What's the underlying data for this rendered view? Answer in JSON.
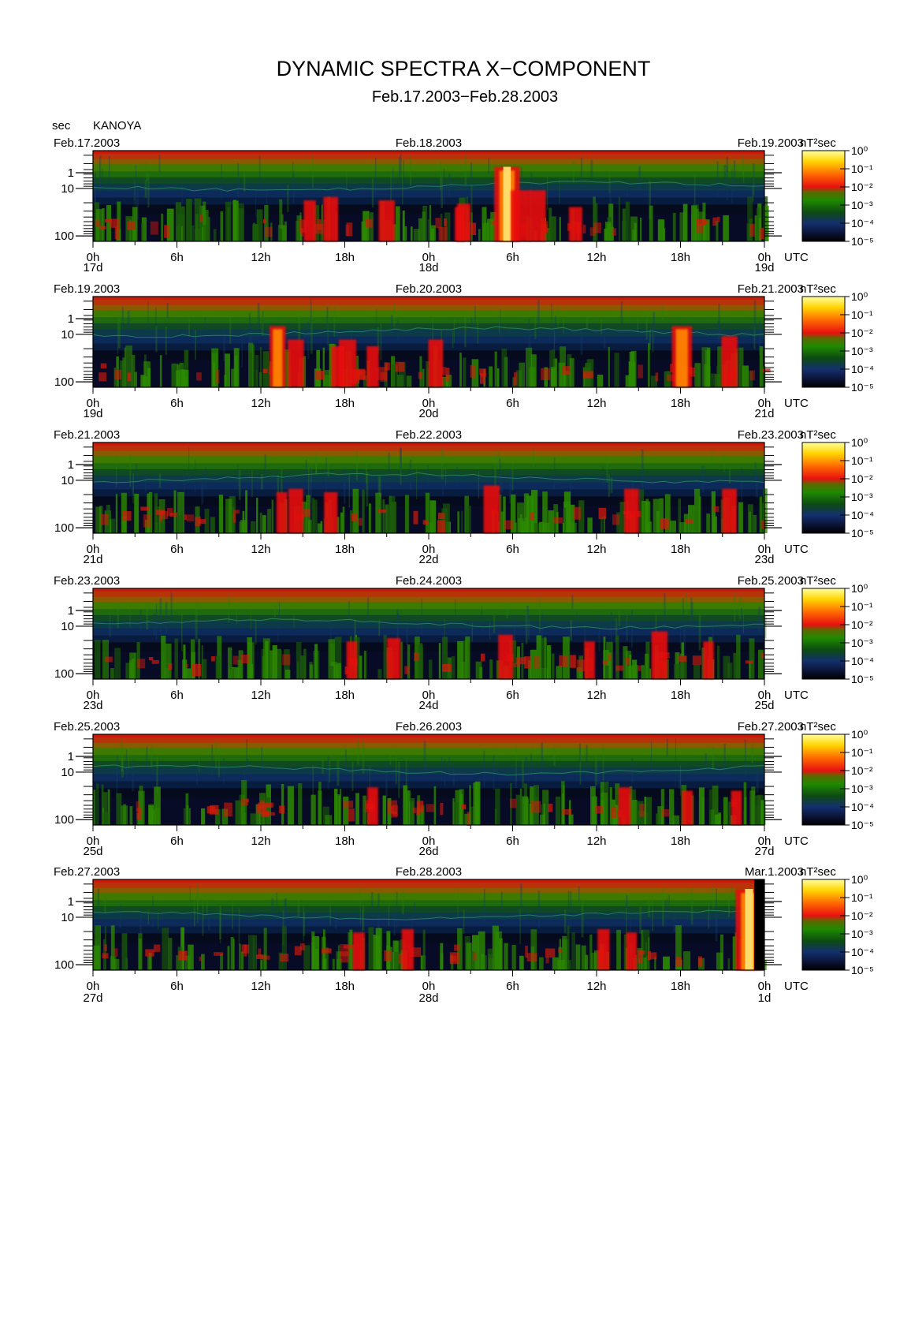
{
  "header": {
    "title": "DYNAMIC SPECTRA X−COMPONENT",
    "subtitle": "Feb.17.2003−Feb.28.2003",
    "unit_label": "sec",
    "station": "KANOYA"
  },
  "chart_data": {
    "type": "heatmap",
    "title": "DYNAMIC SPECTRA X−COMPONENT",
    "subtitle": "Feb.17.2003−Feb.28.2003",
    "ylabel": "sec",
    "yscale": "log",
    "y_ticks": [
      "1",
      "10",
      "100"
    ],
    "x_ticks": [
      "0h",
      "6h",
      "12h",
      "18h",
      "0h",
      "6h",
      "12h",
      "18h",
      "0h"
    ],
    "x_unit": "UTC",
    "colorbar": {
      "unit": "nT²sec",
      "scale": "log",
      "ticks": [
        "10⁰",
        "10⁻¹",
        "10⁻²",
        "10⁻³",
        "10⁻⁴",
        "10⁻⁵"
      ],
      "colors": [
        "#ffff99",
        "#ffcc00",
        "#ff6600",
        "#e81010",
        "#1e8a00",
        "#0a4a10",
        "#102a6a",
        "#000000"
      ]
    },
    "panels": [
      {
        "left_date": "Feb.17.2003",
        "mid_date": "Feb.18.2003",
        "right_date": "Feb.19.2003",
        "day_labels": [
          "17d",
          "18d",
          "19d"
        ],
        "bursts": [
          [
            2.5,
            0.35,
            0.5
          ],
          [
            5.6,
            0.9,
            0.95
          ],
          [
            6.6,
            0.55,
            0.75
          ],
          [
            7.8,
            0.55,
            0.6
          ],
          [
            2.2,
            0.3,
            0.35
          ],
          [
            10.5,
            0.3,
            0.5
          ],
          [
            -7.0,
            0.45,
            0.55
          ],
          [
            -3.0,
            0.4,
            0.6
          ],
          [
            -8.5,
            0.4,
            0.45
          ]
        ]
      },
      {
        "left_date": "Feb.19.2003",
        "mid_date": "Feb.20.2003",
        "right_date": "Feb.21.2003",
        "day_labels": [
          "19d",
          "20d",
          "21d"
        ],
        "bursts": [
          [
            0.5,
            0.5,
            0.55
          ],
          [
            -9.5,
            0.5,
            0.6
          ],
          [
            -5.8,
            0.5,
            0.65
          ],
          [
            -10.8,
            0.7,
            0.6
          ],
          [
            -6.5,
            0.4,
            0.5
          ],
          [
            18.1,
            0.7,
            0.75
          ],
          [
            21.5,
            0.55,
            0.6
          ],
          [
            -4.0,
            0.4,
            0.45
          ]
        ]
      },
      {
        "left_date": "Feb.21.2003",
        "mid_date": "Feb.22.2003",
        "right_date": "Feb.23.2003",
        "day_labels": [
          "21d",
          "22d",
          "23d"
        ],
        "bursts": [
          [
            4.5,
            0.5,
            0.6
          ],
          [
            -9.5,
            0.45,
            0.55
          ],
          [
            -7.0,
            0.4,
            0.5
          ],
          [
            14.5,
            0.45,
            0.55
          ],
          [
            21.5,
            0.45,
            0.55
          ],
          [
            -10.5,
            0.4,
            0.4
          ]
        ]
      },
      {
        "left_date": "Feb.23.2003",
        "mid_date": "Feb.24.2003",
        "right_date": "Feb.25.2003",
        "day_labels": [
          "23d",
          "24d",
          "25d"
        ],
        "bursts": [
          [
            5.5,
            0.45,
            0.55
          ],
          [
            16.5,
            0.5,
            0.6
          ],
          [
            -2.5,
            0.4,
            0.5
          ],
          [
            -5.5,
            0.35,
            0.4
          ],
          [
            11.5,
            0.35,
            0.4
          ],
          [
            20.0,
            0.35,
            0.4
          ]
        ]
      },
      {
        "left_date": "Feb.25.2003",
        "mid_date": "Feb.26.2003",
        "right_date": "Feb.27.2003",
        "day_labels": [
          "25d",
          "26d",
          "27d"
        ],
        "bursts": [
          [
            14.0,
            0.35,
            0.45
          ],
          [
            -4.0,
            0.35,
            0.4
          ],
          [
            18.5,
            0.3,
            0.4
          ],
          [
            22.0,
            0.3,
            0.4
          ]
        ]
      },
      {
        "left_date": "Feb.27.2003",
        "mid_date": "Feb.28.2003",
        "right_date": "Mar.1.2003",
        "day_labels": [
          "27d",
          "28d",
          "1d"
        ],
        "bursts": [
          [
            12.5,
            0.4,
            0.45
          ],
          [
            -1.5,
            0.4,
            0.45
          ],
          [
            -5.0,
            0.35,
            0.45
          ],
          [
            14.5,
            0.35,
            0.4
          ],
          [
            22.9,
            1.0,
            1.0
          ]
        ]
      }
    ]
  }
}
